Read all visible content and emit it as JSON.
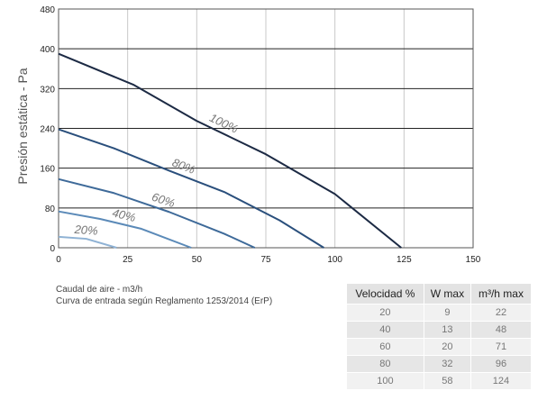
{
  "chart_data": {
    "type": "line",
    "title": "",
    "xlabel": "",
    "ylabel": "Presión estática - Pa",
    "xlim": [
      0,
      150
    ],
    "ylim": [
      0,
      480
    ],
    "xticks": [
      0,
      25,
      50,
      75,
      100,
      125,
      150
    ],
    "yticks": [
      0,
      80,
      160,
      240,
      320,
      400,
      480
    ],
    "grid": "horizontal",
    "series": [
      {
        "name": "100%",
        "color": "#1c2a44",
        "points": [
          [
            0,
            390
          ],
          [
            27,
            328
          ],
          [
            50,
            255
          ],
          [
            75,
            188
          ],
          [
            100,
            108
          ],
          [
            124,
            0
          ]
        ]
      },
      {
        "name": "80%",
        "color": "#2a4f7c",
        "points": [
          [
            0,
            238
          ],
          [
            20,
            200
          ],
          [
            40,
            155
          ],
          [
            60,
            112
          ],
          [
            80,
            55
          ],
          [
            96,
            0
          ]
        ]
      },
      {
        "name": "60%",
        "color": "#3e6a99",
        "points": [
          [
            0,
            138
          ],
          [
            20,
            110
          ],
          [
            40,
            72
          ],
          [
            60,
            28
          ],
          [
            71,
            0
          ]
        ]
      },
      {
        "name": "40%",
        "color": "#5b8ab8",
        "points": [
          [
            0,
            73
          ],
          [
            15,
            58
          ],
          [
            30,
            38
          ],
          [
            48,
            0
          ]
        ]
      },
      {
        "name": "20%",
        "color": "#8fb2d4",
        "points": [
          [
            0,
            22
          ],
          [
            10,
            18
          ],
          [
            21,
            0
          ]
        ]
      }
    ]
  },
  "notes": {
    "line1": "Caudal de aire - m3/h",
    "line2": "Curva de entrada según  Reglamento 1253/2014 (ErP)"
  },
  "table": {
    "headers": [
      "Velocidad %",
      "W max",
      "m³/h max"
    ],
    "rows": [
      [
        "20",
        "9",
        "22"
      ],
      [
        "40",
        "13",
        "48"
      ],
      [
        "60",
        "20",
        "71"
      ],
      [
        "80",
        "32",
        "96"
      ],
      [
        "100",
        "58",
        "124"
      ]
    ]
  }
}
